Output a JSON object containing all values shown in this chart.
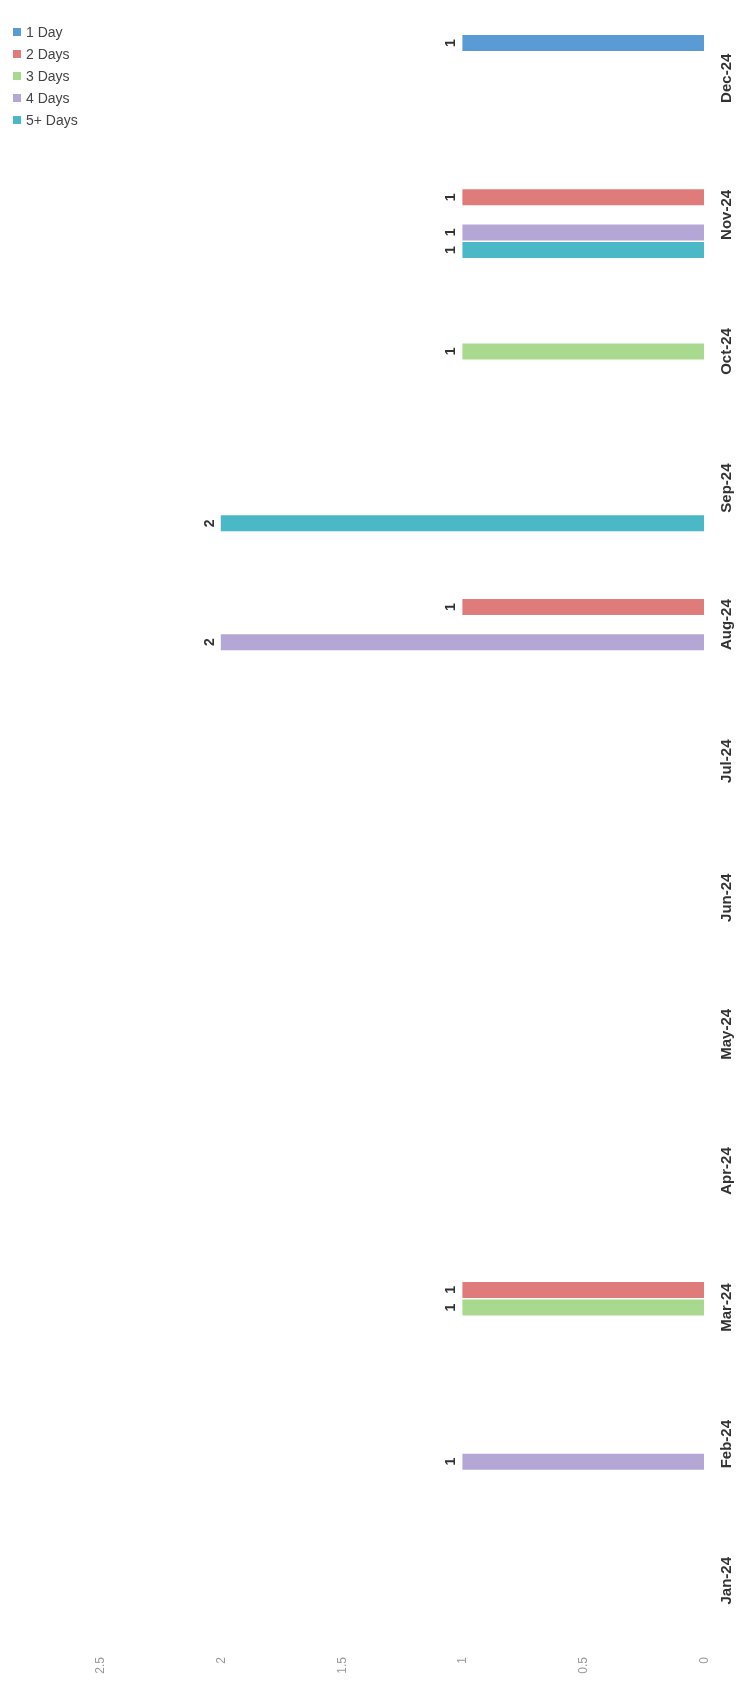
{
  "chart_data": {
    "type": "bar",
    "orientation": "horizontal",
    "categories": [
      "Dec-24",
      "Nov-24",
      "Oct-24",
      "Sep-24",
      "Aug-24",
      "Jul-24",
      "Jun-24",
      "May-24",
      "Apr-24",
      "Mar-24",
      "Feb-24",
      "Jan-24"
    ],
    "series": [
      {
        "name": "1 Day",
        "color": "#5b9bd5",
        "values": [
          1,
          null,
          null,
          null,
          null,
          null,
          null,
          null,
          null,
          null,
          null,
          null
        ]
      },
      {
        "name": "2 Days",
        "color": "#e07b7b",
        "values": [
          null,
          1,
          null,
          null,
          1,
          null,
          null,
          null,
          null,
          1,
          null,
          null
        ]
      },
      {
        "name": "3 Days",
        "color": "#a9d98e",
        "values": [
          null,
          null,
          1,
          null,
          null,
          null,
          null,
          null,
          null,
          1,
          null,
          null
        ]
      },
      {
        "name": "4 Days",
        "color": "#b4a7d6",
        "values": [
          null,
          1,
          null,
          null,
          2,
          null,
          null,
          null,
          null,
          null,
          1,
          null
        ]
      },
      {
        "name": "5+ Days",
        "color": "#4bb8c8",
        "values": [
          null,
          1,
          null,
          2,
          null,
          null,
          null,
          null,
          null,
          null,
          null,
          null
        ]
      }
    ],
    "xlim": [
      2.5,
      0
    ],
    "xticks": [
      0,
      0.5,
      1,
      1.5,
      2,
      2.5
    ],
    "grid": false,
    "legend": "left",
    "data_labels": true
  }
}
